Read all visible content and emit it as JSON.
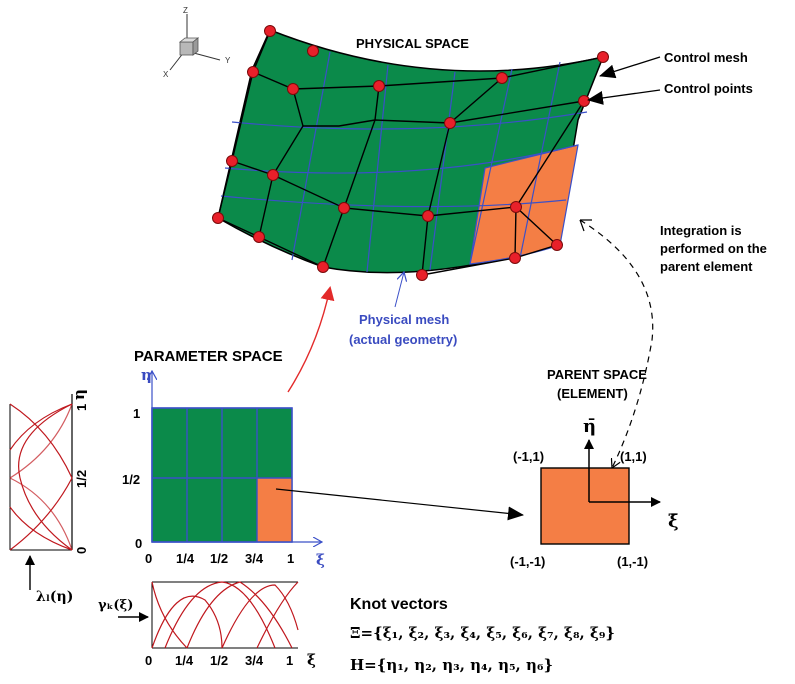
{
  "colors": {
    "green": "#0b8a4a",
    "orange": "#f47e45",
    "control_point": "#e8202a",
    "blue_line": "#3b50c8",
    "basis_curve": "#c0181e",
    "arrow_red": "#e32a2a",
    "text_blue": "#3a4bc0"
  },
  "labels": {
    "physical_space": "PHYSICAL SPACE",
    "control_mesh": "Control mesh",
    "control_points": "Control points",
    "integration_1": "Integration is",
    "integration_2": "performed on the",
    "integration_3": "parent element",
    "physical_mesh_1": "Physical mesh",
    "physical_mesh_2": "(actual geometry)",
    "parameter_space": "PARAMETER SPACE",
    "parent_space_1": "PARENT SPACE",
    "parent_space_2": "(ELEMENT)",
    "knot_vectors": "Knot vectors",
    "xi_knots": "Ξ={ξ₁, ξ₂, ξ₃, ξ₄, ξ₅, ξ₆, ξ₇, ξ₈, ξ₉}",
    "eta_knots": "H={η₁, η₂, η₃, η₄, η₅, η₆}"
  },
  "axes": {
    "z": "Z",
    "y": "Y",
    "x": "X",
    "eta": "η",
    "xi": "ξ",
    "eta_bar": "η̄",
    "xi_bar": "ξ̄",
    "lambda_label": "λₗ(η)",
    "gamma_label": "γₖ(ξ)"
  },
  "param_ticks": {
    "x": [
      "0",
      "1/4",
      "1/2",
      "3/4",
      "1"
    ],
    "y": [
      "0",
      "1/2",
      "1"
    ]
  },
  "basis_ticks": {
    "x": [
      "0",
      "1/4",
      "1/2",
      "3/4",
      "1",
      "ξ"
    ],
    "eta_axis": [
      "0",
      "1/2",
      "1",
      "η"
    ]
  },
  "parent_corners": {
    "top_left": "(-1,1)",
    "top_right": "(1,1)",
    "bottom_left": "(-1,-1)",
    "bottom_right": "(1,-1)"
  }
}
